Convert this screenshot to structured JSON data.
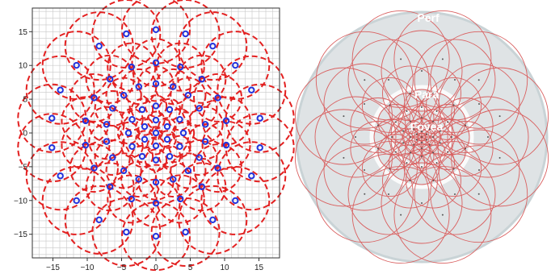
{
  "left_panel": {
    "x_ticks": [
      "-15",
      "-10",
      "-5",
      "0",
      "5",
      "10",
      "15"
    ],
    "y_ticks": [
      "15",
      "10",
      "5",
      "0",
      "-5",
      "-10",
      "-15"
    ],
    "xlim": [
      -18,
      18
    ],
    "ylim": [
      -18.5,
      18.5
    ],
    "grid": true,
    "rings": [
      {
        "count": 1,
        "radius": 0,
        "phase_deg": 90
      },
      {
        "count": 6,
        "radius": 1.9,
        "phase_deg": 90
      },
      {
        "count": 12,
        "radius": 4.0,
        "phase_deg": 90
      },
      {
        "count": 18,
        "radius": 7.3,
        "phase_deg": 90
      },
      {
        "count": 18,
        "radius": 10.4,
        "phase_deg": 90
      },
      {
        "count": 22,
        "radius": 15.3,
        "phase_deg": 90
      }
    ],
    "sensor_color": "#2233dd",
    "field_color": "#e32020"
  },
  "right_panel": {
    "labels": {
      "periphery": "Perf",
      "parafovea": "Para",
      "fovea": "Fovea"
    },
    "zone_color": "#dfe3e5",
    "circle_color": "#d96060"
  }
}
